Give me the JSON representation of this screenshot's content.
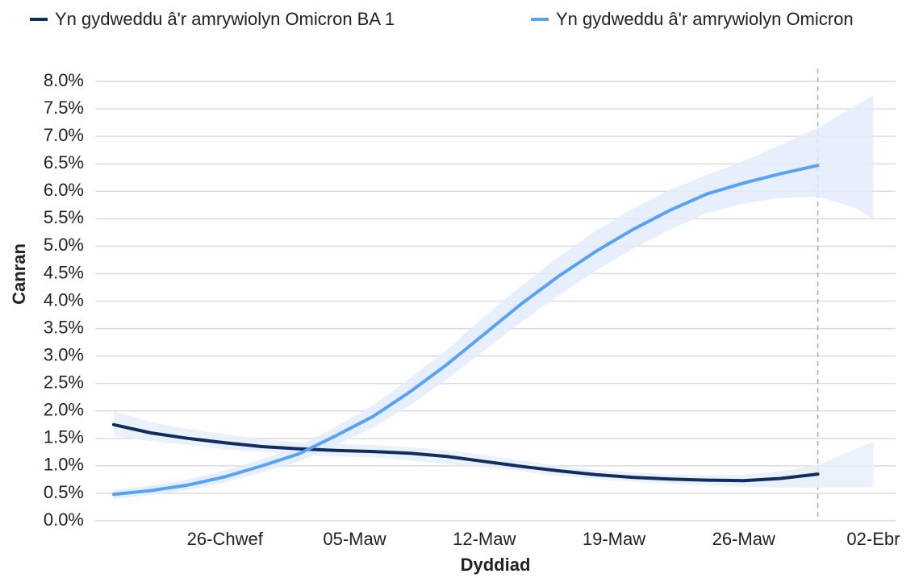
{
  "chart_data": {
    "type": "line",
    "xlabel": "Dyddiad",
    "ylabel": "Canran",
    "x": [
      51,
      53,
      55,
      57,
      59,
      61,
      63,
      65,
      67,
      69,
      71,
      73,
      75,
      77,
      79,
      81,
      83,
      85,
      87,
      89,
      91,
      92
    ],
    "xlim": [
      50,
      93.2
    ],
    "xticks": [
      {
        "value": 57,
        "label": "26-Chwef"
      },
      {
        "value": 64,
        "label": "05-Maw"
      },
      {
        "value": 71,
        "label": "12-Maw"
      },
      {
        "value": 78,
        "label": "19-Maw"
      },
      {
        "value": 85,
        "label": "26-Maw"
      },
      {
        "value": 92,
        "label": "02-Ebr"
      }
    ],
    "ylim": [
      0,
      8
    ],
    "yticks": [
      {
        "value": 0,
        "label": "0.0%"
      },
      {
        "value": 0.5,
        "label": "0.5%"
      },
      {
        "value": 1,
        "label": "1.0%"
      },
      {
        "value": 1.5,
        "label": "1.5%"
      },
      {
        "value": 2,
        "label": "2.0%"
      },
      {
        "value": 2.5,
        "label": "2.5%"
      },
      {
        "value": 3,
        "label": "3.0%"
      },
      {
        "value": 3.5,
        "label": "3.5%"
      },
      {
        "value": 4,
        "label": "4.0%"
      },
      {
        "value": 4.5,
        "label": "4.5%"
      },
      {
        "value": 5,
        "label": "5.0%"
      },
      {
        "value": 5.5,
        "label": "5.5%"
      },
      {
        "value": 6,
        "label": "6.0%"
      },
      {
        "value": 6.5,
        "label": "6.5%"
      },
      {
        "value": 7,
        "label": "7.0%"
      },
      {
        "value": 7.5,
        "label": "7.5%"
      },
      {
        "value": 8,
        "label": "8.0%"
      }
    ],
    "grid": true,
    "vline": 89,
    "legend": "top",
    "series": [
      {
        "name": "Yn gydweddu â'r amrywiolyn Omicron BA 1",
        "color": "#0f2d5e",
        "band_color": "#e8eefa",
        "values": [
          1.75,
          1.6,
          1.5,
          1.42,
          1.35,
          1.31,
          1.28,
          1.26,
          1.23,
          1.17,
          1.08,
          0.99,
          0.91,
          0.84,
          0.79,
          0.76,
          0.74,
          0.73,
          0.77,
          0.85,
          null,
          null
        ],
        "lower": [
          1.55,
          1.45,
          1.38,
          1.3,
          1.25,
          1.2,
          1.17,
          1.15,
          1.1,
          1.03,
          0.97,
          0.9,
          0.82,
          0.76,
          0.71,
          0.67,
          0.64,
          0.62,
          0.6,
          0.6,
          0.6,
          0.62
        ],
        "upper": [
          2.0,
          1.8,
          1.67,
          1.58,
          1.48,
          1.43,
          1.4,
          1.38,
          1.34,
          1.28,
          1.2,
          1.1,
          1.0,
          0.93,
          0.88,
          0.85,
          0.83,
          0.84,
          0.9,
          1.02,
          1.3,
          1.45
        ]
      },
      {
        "name": "Yn gydweddu â'r amrywiolyn Omicron",
        "color": "#58a2f4",
        "band_color": "#e3ecfc",
        "values": [
          0.48,
          0.55,
          0.65,
          0.8,
          1.0,
          1.22,
          1.55,
          1.9,
          2.35,
          2.85,
          3.4,
          3.95,
          4.45,
          4.9,
          5.3,
          5.65,
          5.95,
          6.15,
          6.32,
          6.47,
          null,
          null
        ],
        "lower": [
          0.4,
          0.47,
          0.56,
          0.7,
          0.88,
          1.08,
          1.38,
          1.7,
          2.1,
          2.58,
          3.1,
          3.62,
          4.1,
          4.55,
          4.95,
          5.3,
          5.6,
          5.78,
          5.88,
          5.9,
          5.7,
          5.5
        ],
        "upper": [
          0.56,
          0.64,
          0.75,
          0.92,
          1.12,
          1.36,
          1.72,
          2.1,
          2.6,
          3.12,
          3.72,
          4.28,
          4.8,
          5.28,
          5.68,
          6.02,
          6.3,
          6.55,
          6.85,
          7.15,
          7.55,
          7.75
        ]
      }
    ]
  }
}
